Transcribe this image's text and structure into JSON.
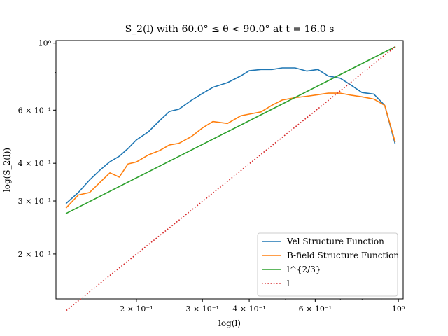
{
  "chart_data": {
    "type": "line",
    "title": "S_2(l) with 60.0° ≤ θ < 90.0° at t = 16.0 s",
    "xlabel": "log(l)",
    "ylabel": "log(S_2(l))",
    "xscale": "log",
    "yscale": "log",
    "xlim": [
      0.122,
      1.03
    ],
    "ylim": [
      0.142,
      1.02
    ],
    "x_ticks": [
      {
        "value": 0.2,
        "label": "2 × 10⁻¹"
      },
      {
        "value": 0.3,
        "label": "3 × 10⁻¹"
      },
      {
        "value": 0.4,
        "label": "4 × 10⁻¹"
      },
      {
        "value": 0.6,
        "label": "6 × 10⁻¹"
      },
      {
        "value": 1.0,
        "label": "10⁰"
      }
    ],
    "y_ticks": [
      {
        "value": 0.2,
        "label": "2 × 10⁻¹"
      },
      {
        "value": 0.3,
        "label": "3 × 10⁻¹"
      },
      {
        "value": 0.4,
        "label": "4 × 10⁻¹"
      },
      {
        "value": 0.6,
        "label": "6 × 10⁻¹"
      },
      {
        "value": 1.0,
        "label": "10⁰"
      }
    ],
    "legend_position": "lower-right",
    "grid": false,
    "series": [
      {
        "name": "Vel Structure Function",
        "color": "#1f77b4",
        "style": "solid",
        "x": [
          0.13,
          0.14,
          0.15,
          0.16,
          0.17,
          0.18,
          0.19,
          0.2,
          0.215,
          0.23,
          0.245,
          0.26,
          0.28,
          0.3,
          0.32,
          0.35,
          0.38,
          0.4,
          0.43,
          0.46,
          0.49,
          0.53,
          0.57,
          0.61,
          0.65,
          0.7,
          0.75,
          0.8,
          0.86,
          0.92,
          0.98
        ],
        "y": [
          0.295,
          0.32,
          0.352,
          0.38,
          0.405,
          0.422,
          0.448,
          0.478,
          0.508,
          0.552,
          0.594,
          0.605,
          0.646,
          0.681,
          0.714,
          0.74,
          0.779,
          0.81,
          0.818,
          0.818,
          0.828,
          0.828,
          0.808,
          0.818,
          0.778,
          0.765,
          0.724,
          0.686,
          0.678,
          0.622,
          0.465
        ]
      },
      {
        "name": "B-field Structure Function",
        "color": "#ff7f0e",
        "style": "solid",
        "x": [
          0.13,
          0.14,
          0.15,
          0.16,
          0.17,
          0.18,
          0.19,
          0.2,
          0.215,
          0.23,
          0.245,
          0.26,
          0.28,
          0.3,
          0.32,
          0.35,
          0.38,
          0.4,
          0.43,
          0.46,
          0.49,
          0.53,
          0.57,
          0.61,
          0.65,
          0.7,
          0.75,
          0.8,
          0.86,
          0.92,
          0.98
        ],
        "y": [
          0.285,
          0.314,
          0.32,
          0.346,
          0.372,
          0.36,
          0.398,
          0.404,
          0.426,
          0.44,
          0.46,
          0.466,
          0.49,
          0.524,
          0.55,
          0.542,
          0.575,
          0.582,
          0.592,
          0.623,
          0.648,
          0.66,
          0.667,
          0.675,
          0.683,
          0.683,
          0.672,
          0.664,
          0.653,
          0.622,
          0.472
        ]
      },
      {
        "name": "l^{2/3}",
        "color": "#2ca02c",
        "style": "solid",
        "x": [
          0.13,
          0.98
        ],
        "y": [
          0.273,
          0.972
        ]
      },
      {
        "name": "l",
        "color": "#d62728",
        "style": "dotted",
        "x": [
          0.13,
          0.98
        ],
        "y": [
          0.13,
          0.972
        ]
      }
    ]
  }
}
